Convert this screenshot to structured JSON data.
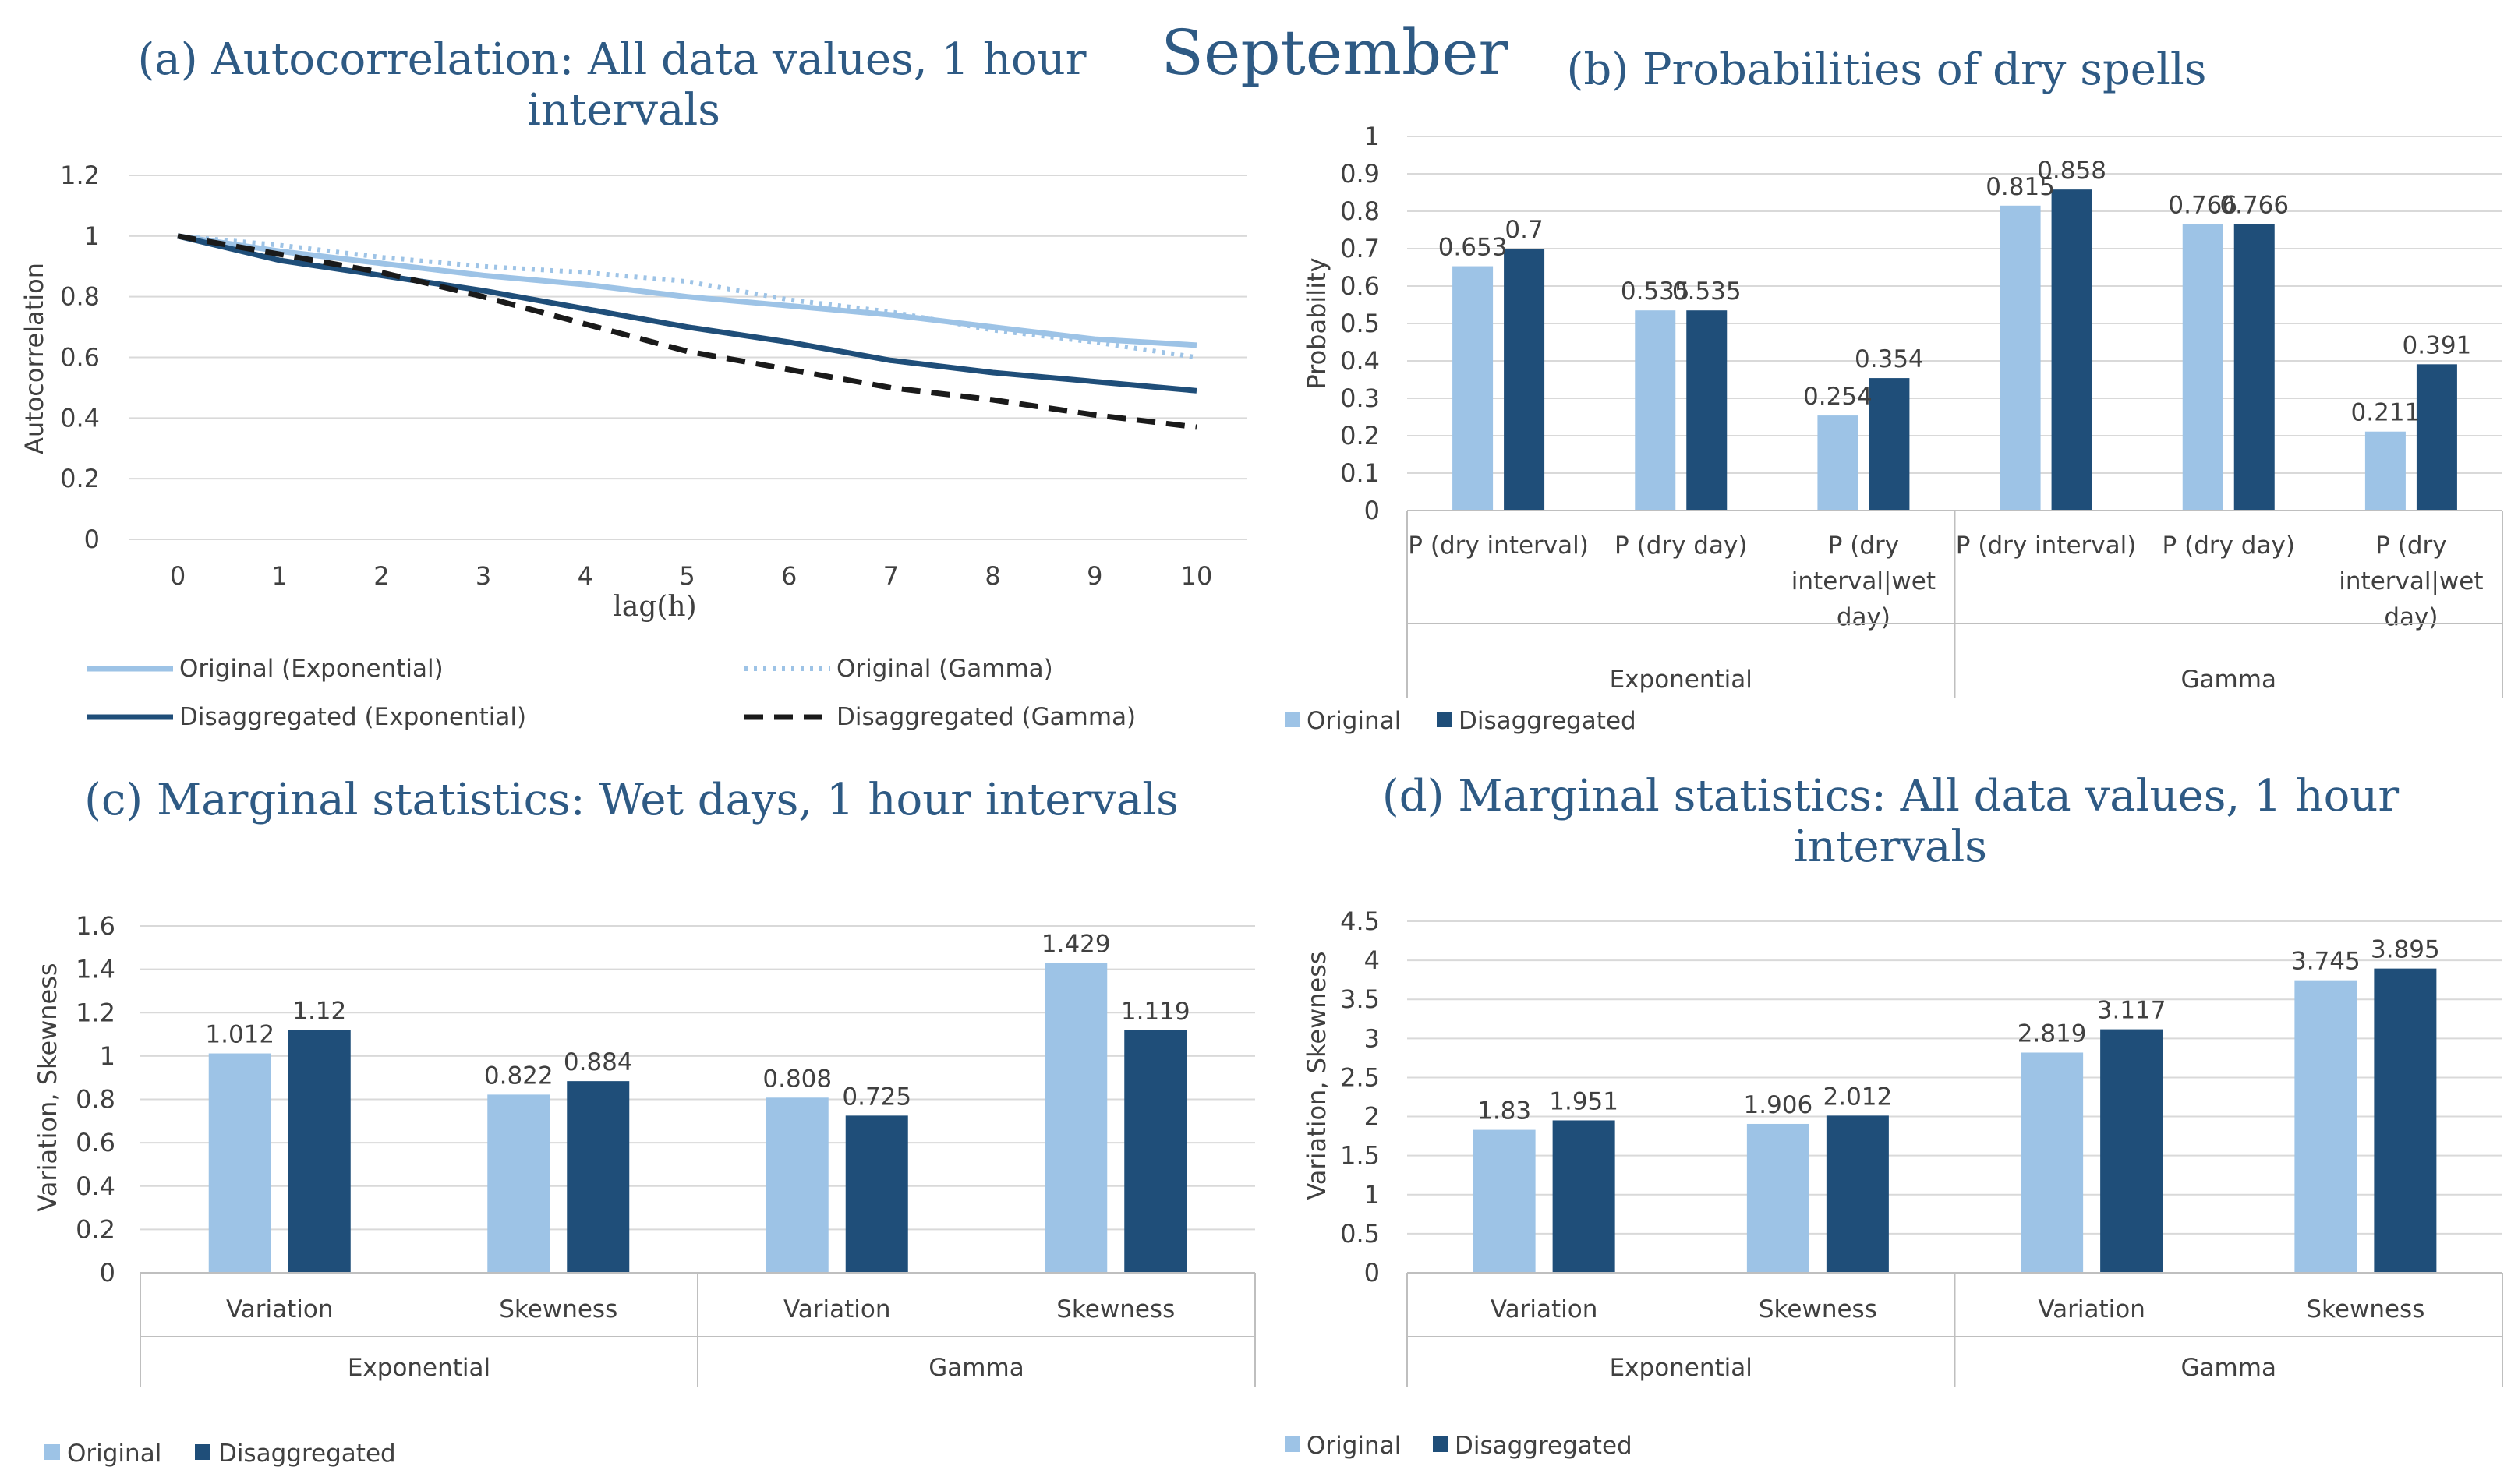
{
  "figure_title": "September",
  "colors": {
    "original": "#9dc3e6",
    "disaggregated": "#1f4e79",
    "dashed": "#1a1a1a"
  },
  "legend": {
    "original": "Original",
    "disaggregated": "Disaggregated",
    "orig_exp": "Original (Exponential)",
    "orig_gamma": "Original (Gamma)",
    "dis_exp": "Disaggregated (Exponential)",
    "dis_gamma": "Disaggregated (Gamma)"
  },
  "chart_data": [
    {
      "id": "a",
      "type": "line",
      "title_line1": "(a) Autocorrelation: All data values, 1 hour",
      "title_line2": "intervals",
      "xlabel": "lag(h)",
      "ylabel": "Autocorrelation",
      "ylim": [
        0,
        1.2
      ],
      "yticks": [
        "0",
        "0.2",
        "0.4",
        "0.6",
        "0.8",
        "1",
        "1.2"
      ],
      "x": [
        0,
        1,
        2,
        3,
        4,
        5,
        6,
        7,
        8,
        9,
        10
      ],
      "series": [
        {
          "name": "Original (Exponential)",
          "values": [
            1,
            0.95,
            0.91,
            0.87,
            0.84,
            0.8,
            0.77,
            0.74,
            0.7,
            0.66,
            0.64
          ]
        },
        {
          "name": "Original (Gamma)",
          "values": [
            1,
            0.97,
            0.93,
            0.9,
            0.88,
            0.85,
            0.79,
            0.75,
            0.69,
            0.65,
            0.6
          ]
        },
        {
          "name": "Disaggregated (Exponential)",
          "values": [
            1,
            0.92,
            0.87,
            0.82,
            0.76,
            0.7,
            0.65,
            0.59,
            0.55,
            0.52,
            0.49
          ]
        },
        {
          "name": "Disaggregated (Gamma)",
          "values": [
            1,
            0.94,
            0.88,
            0.8,
            0.71,
            0.62,
            0.56,
            0.5,
            0.46,
            0.41,
            0.37
          ]
        }
      ]
    },
    {
      "id": "b",
      "type": "bar",
      "title": "(b) Probabilities of dry spells",
      "ylabel": "Probability",
      "ylim": [
        0,
        1
      ],
      "yticks": [
        "0",
        "0.1",
        "0.2",
        "0.3",
        "0.4",
        "0.5",
        "0.6",
        "0.7",
        "0.8",
        "0.9",
        "1"
      ],
      "groups": [
        "Exponential",
        "Gamma"
      ],
      "categories": [
        [
          "P (dry interval)"
        ],
        [
          "P (dry day)"
        ],
        [
          "P (dry",
          "interval|wet",
          "day)"
        ],
        [
          "P (dry interval)"
        ],
        [
          "P (dry day)"
        ],
        [
          "P (dry",
          "interval|wet",
          "day)"
        ]
      ],
      "series": [
        {
          "name": "Original",
          "values": [
            0.653,
            0.535,
            0.254,
            0.815,
            0.766,
            0.211
          ]
        },
        {
          "name": "Disaggregated",
          "values": [
            0.7,
            0.535,
            0.354,
            0.858,
            0.766,
            0.391
          ]
        }
      ]
    },
    {
      "id": "c",
      "type": "bar",
      "title": "(c) Marginal statistics: Wet days, 1 hour intervals",
      "ylabel": "Variation, Skewness",
      "ylim": [
        0,
        1.6
      ],
      "yticks": [
        "0",
        "0.2",
        "0.4",
        "0.6",
        "0.8",
        "1",
        "1.2",
        "1.4",
        "1.6"
      ],
      "groups": [
        "Exponential",
        "Gamma"
      ],
      "categories": [
        [
          "Variation"
        ],
        [
          "Skewness"
        ],
        [
          "Variation"
        ],
        [
          "Skewness"
        ]
      ],
      "series": [
        {
          "name": "Original",
          "values": [
            1.012,
            0.822,
            0.808,
            1.429
          ]
        },
        {
          "name": "Disaggregated",
          "values": [
            1.12,
            0.884,
            0.725,
            1.119
          ]
        }
      ]
    },
    {
      "id": "d",
      "type": "bar",
      "title_line1": "(d) Marginal statistics: All data values, 1 hour",
      "title_line2": "intervals",
      "ylabel": "Variation, Skewness",
      "ylim": [
        0,
        4.5
      ],
      "yticks": [
        "0",
        "0.5",
        "1",
        "1.5",
        "2",
        "2.5",
        "3",
        "3.5",
        "4",
        "4.5"
      ],
      "groups": [
        "Exponential",
        "Gamma"
      ],
      "categories": [
        [
          "Variation"
        ],
        [
          "Skewness"
        ],
        [
          "Variation"
        ],
        [
          "Skewness"
        ]
      ],
      "series": [
        {
          "name": "Original",
          "values": [
            1.83,
            1.906,
            2.819,
            3.745
          ]
        },
        {
          "name": "Disaggregated",
          "values": [
            1.951,
            2.012,
            3.117,
            3.895
          ]
        }
      ]
    }
  ]
}
